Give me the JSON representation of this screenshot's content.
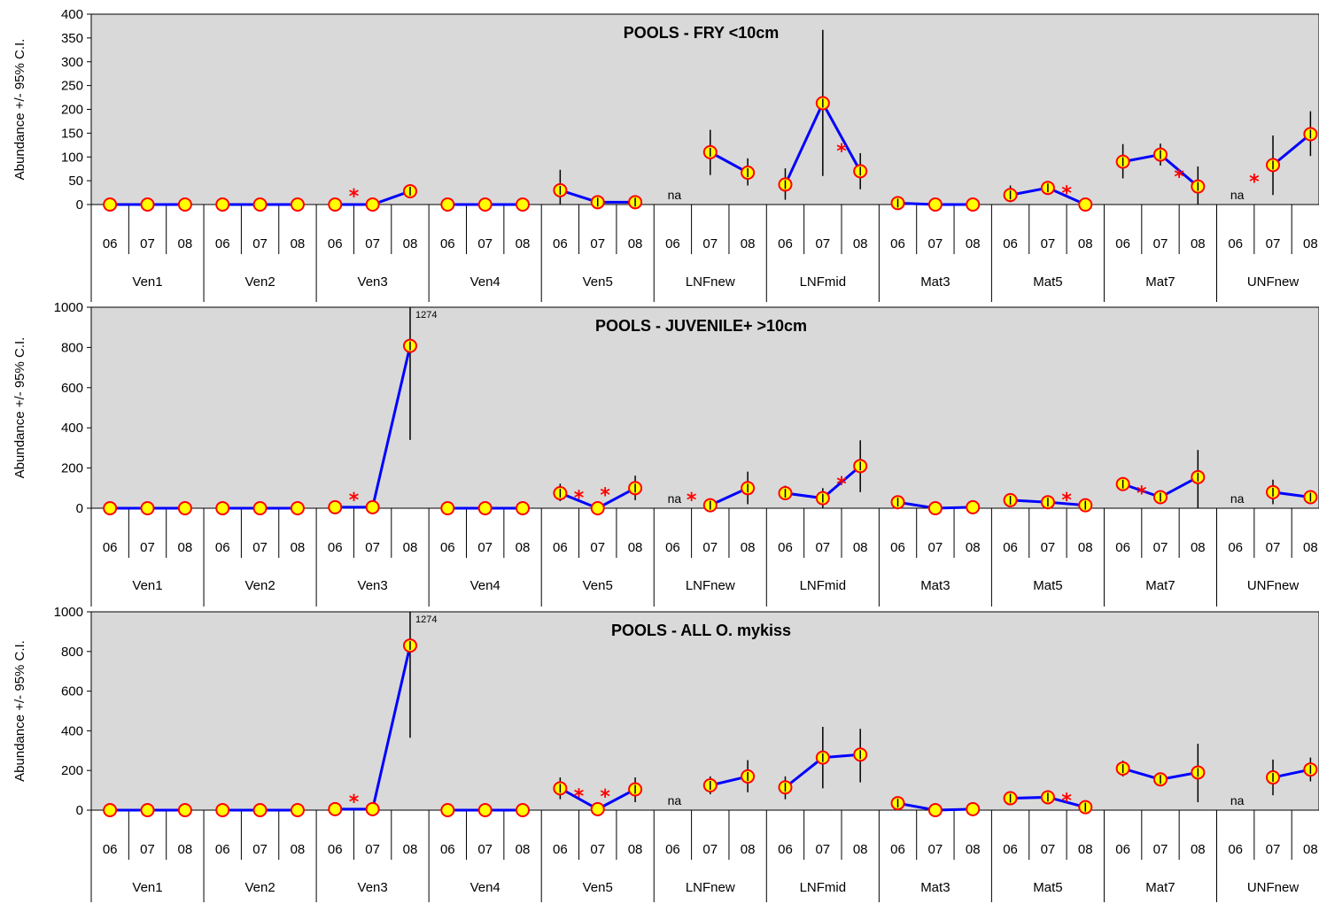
{
  "colors": {
    "plot_bg": "#d9d9d9",
    "line": "#0000ff",
    "marker_fill": "#ffff00",
    "marker_edge": "#ff0000",
    "errorbar": "#000000",
    "significance": "#ff0000"
  },
  "chart_data": [
    {
      "type": "line",
      "title": "POOLS - FRY <10cm",
      "ylabel": "Abundance +/- 95% C.I.",
      "ylim": [
        0,
        400
      ],
      "yticks": [
        0,
        50,
        100,
        150,
        200,
        250,
        300,
        350,
        400
      ],
      "years": [
        "06",
        "07",
        "08"
      ],
      "sites": [
        {
          "name": "Ven1",
          "values": [
            0,
            0,
            0
          ],
          "lower": [
            null,
            null,
            null
          ],
          "upper": [
            null,
            null,
            null
          ],
          "stars": []
        },
        {
          "name": "Ven2",
          "values": [
            0,
            0,
            0
          ],
          "lower": [
            null,
            null,
            null
          ],
          "upper": [
            null,
            null,
            null
          ],
          "stars": []
        },
        {
          "name": "Ven3",
          "values": [
            0,
            0,
            28
          ],
          "lower": [
            null,
            null,
            18
          ],
          "upper": [
            null,
            null,
            38
          ],
          "stars": [
            1
          ]
        },
        {
          "name": "Ven4",
          "values": [
            0,
            0,
            0
          ],
          "lower": [
            null,
            null,
            null
          ],
          "upper": [
            null,
            null,
            null
          ],
          "stars": []
        },
        {
          "name": "Ven5",
          "values": [
            30,
            5,
            5
          ],
          "lower": [
            0,
            0,
            0
          ],
          "upper": [
            73,
            12,
            14
          ],
          "stars": []
        },
        {
          "name": "LNFnew",
          "values": [
            null,
            110,
            67
          ],
          "lower": [
            null,
            62,
            40
          ],
          "upper": [
            null,
            157,
            97
          ],
          "stars": [],
          "na": 0
        },
        {
          "name": "LNFmid",
          "values": [
            42,
            213,
            70
          ],
          "lower": [
            10,
            60,
            32
          ],
          "upper": [
            76,
            367,
            108
          ],
          "stars": [
            2
          ]
        },
        {
          "name": "Mat3",
          "values": [
            3,
            0,
            0
          ],
          "lower": [
            0,
            null,
            null
          ],
          "upper": [
            10,
            null,
            null
          ],
          "stars": []
        },
        {
          "name": "Mat5",
          "values": [
            20,
            35,
            0
          ],
          "lower": [
            5,
            25,
            null
          ],
          "upper": [
            40,
            45,
            null
          ],
          "stars": [
            2
          ]
        },
        {
          "name": "Mat7",
          "values": [
            90,
            105,
            38
          ],
          "lower": [
            55,
            82,
            0
          ],
          "upper": [
            127,
            128,
            80
          ],
          "stars": [
            2
          ]
        },
        {
          "name": "UNFnew",
          "values": [
            null,
            83,
            148
          ],
          "lower": [
            null,
            20,
            102
          ],
          "upper": [
            null,
            145,
            196
          ],
          "stars": [
            1
          ],
          "na": 0
        }
      ]
    },
    {
      "type": "line",
      "title": "POOLS - JUVENILE+ >10cm",
      "ylabel": "Abundance +/- 95% C.I.",
      "ylim": [
        0,
        1000
      ],
      "yticks": [
        0,
        200,
        400,
        600,
        800,
        1000
      ],
      "years": [
        "06",
        "07",
        "08"
      ],
      "annotation": {
        "text": "1274",
        "site": "Ven3",
        "year": 2
      },
      "sites": [
        {
          "name": "Ven1",
          "values": [
            0,
            0,
            0
          ],
          "lower": [
            null,
            null,
            null
          ],
          "upper": [
            null,
            null,
            null
          ],
          "stars": []
        },
        {
          "name": "Ven2",
          "values": [
            0,
            0,
            0
          ],
          "lower": [
            null,
            null,
            null
          ],
          "upper": [
            null,
            null,
            null
          ],
          "stars": []
        },
        {
          "name": "Ven3",
          "values": [
            5,
            5,
            808
          ],
          "lower": [
            null,
            null,
            340
          ],
          "upper": [
            null,
            null,
            1274
          ],
          "stars": [
            1
          ]
        },
        {
          "name": "Ven4",
          "values": [
            0,
            0,
            0
          ],
          "lower": [
            null,
            null,
            null
          ],
          "upper": [
            null,
            null,
            null
          ],
          "stars": []
        },
        {
          "name": "Ven5",
          "values": [
            75,
            0,
            100
          ],
          "lower": [
            35,
            null,
            40
          ],
          "upper": [
            122,
            null,
            162
          ],
          "stars": [
            1,
            1.7
          ]
        },
        {
          "name": "LNFnew",
          "values": [
            null,
            15,
            100
          ],
          "lower": [
            null,
            0,
            20
          ],
          "upper": [
            null,
            35,
            182
          ],
          "stars": [
            1
          ],
          "na": 0
        },
        {
          "name": "LNFmid",
          "values": [
            75,
            50,
            210
          ],
          "lower": [
            40,
            0,
            80
          ],
          "upper": [
            112,
            100,
            338
          ],
          "stars": [
            2
          ]
        },
        {
          "name": "Mat3",
          "values": [
            30,
            0,
            5
          ],
          "lower": [
            0,
            null,
            null
          ],
          "upper": [
            60,
            null,
            null
          ],
          "stars": []
        },
        {
          "name": "Mat5",
          "values": [
            40,
            30,
            15
          ],
          "lower": [
            20,
            15,
            5
          ],
          "upper": [
            60,
            45,
            25
          ],
          "stars": [
            2
          ]
        },
        {
          "name": "Mat7",
          "values": [
            120,
            55,
            155
          ],
          "lower": [
            95,
            30,
            0
          ],
          "upper": [
            145,
            80,
            290
          ],
          "stars": [
            1
          ]
        },
        {
          "name": "UNFnew",
          "values": [
            null,
            80,
            55
          ],
          "lower": [
            null,
            20,
            30
          ],
          "upper": [
            null,
            142,
            80
          ],
          "stars": [],
          "na": 0
        }
      ]
    },
    {
      "type": "line",
      "title": "POOLS - ALL O. mykiss",
      "ylabel": "Abundance +/- 95% C.I.",
      "ylim": [
        0,
        1000
      ],
      "yticks": [
        0,
        200,
        400,
        600,
        800,
        1000
      ],
      "years": [
        "06",
        "07",
        "08"
      ],
      "annotation": {
        "text": "1274",
        "site": "Ven3",
        "year": 2
      },
      "sites": [
        {
          "name": "Ven1",
          "values": [
            0,
            0,
            0
          ],
          "lower": [
            null,
            null,
            null
          ],
          "upper": [
            null,
            null,
            null
          ],
          "stars": []
        },
        {
          "name": "Ven2",
          "values": [
            0,
            0,
            0
          ],
          "lower": [
            null,
            null,
            null
          ],
          "upper": [
            null,
            null,
            null
          ],
          "stars": []
        },
        {
          "name": "Ven3",
          "values": [
            5,
            5,
            830
          ],
          "lower": [
            null,
            null,
            365
          ],
          "upper": [
            null,
            null,
            1274
          ],
          "stars": [
            1
          ]
        },
        {
          "name": "Ven4",
          "values": [
            0,
            0,
            0
          ],
          "lower": [
            null,
            null,
            null
          ],
          "upper": [
            null,
            null,
            null
          ],
          "stars": []
        },
        {
          "name": "Ven5",
          "values": [
            110,
            5,
            105
          ],
          "lower": [
            55,
            null,
            40
          ],
          "upper": [
            165,
            null,
            165
          ],
          "stars": [
            1,
            1.7
          ]
        },
        {
          "name": "LNFnew",
          "values": [
            null,
            125,
            170
          ],
          "lower": [
            null,
            80,
            90
          ],
          "upper": [
            null,
            170,
            252
          ],
          "stars": [],
          "na": 0
        },
        {
          "name": "LNFmid",
          "values": [
            115,
            265,
            280
          ],
          "lower": [
            55,
            110,
            140
          ],
          "upper": [
            170,
            420,
            410
          ],
          "stars": []
        },
        {
          "name": "Mat3",
          "values": [
            35,
            0,
            5
          ],
          "lower": [
            5,
            null,
            null
          ],
          "upper": [
            65,
            null,
            null
          ],
          "stars": []
        },
        {
          "name": "Mat5",
          "values": [
            60,
            65,
            15
          ],
          "lower": [
            45,
            50,
            5
          ],
          "upper": [
            75,
            80,
            25
          ],
          "stars": [
            2
          ]
        },
        {
          "name": "Mat7",
          "values": [
            210,
            155,
            190
          ],
          "lower": [
            170,
            125,
            40
          ],
          "upper": [
            250,
            185,
            335
          ],
          "stars": []
        },
        {
          "name": "UNFnew",
          "values": [
            null,
            165,
            205
          ],
          "lower": [
            null,
            75,
            145
          ],
          "upper": [
            null,
            255,
            265
          ],
          "stars": [],
          "na": 0
        }
      ]
    }
  ]
}
